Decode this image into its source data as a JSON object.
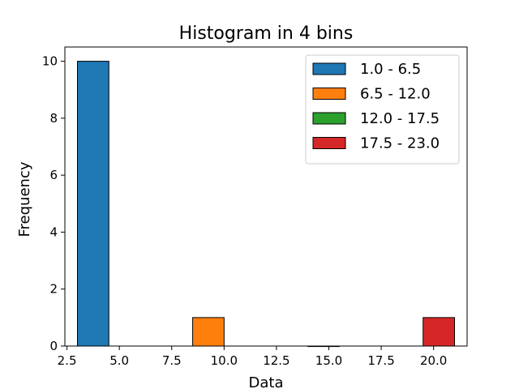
{
  "chart_data": {
    "type": "bar",
    "title": "Histogram in 4 bins",
    "xlabel": "Data",
    "ylabel": "Frequency",
    "xlim": [
      2.4,
      21.6
    ],
    "ylim": [
      0,
      10.5
    ],
    "x_ticks": [
      2.5,
      5.0,
      7.5,
      10.0,
      12.5,
      15.0,
      17.5,
      20.0
    ],
    "x_tick_labels": [
      "2.5",
      "5.0",
      "7.5",
      "10.0",
      "12.5",
      "15.0",
      "17.5",
      "20.0"
    ],
    "y_ticks": [
      0,
      2,
      4,
      6,
      8,
      10
    ],
    "y_tick_labels": [
      "0",
      "2",
      "4",
      "6",
      "8",
      "10"
    ],
    "legend_position": "top-right",
    "grid": false,
    "bar_width": 1.5,
    "series": [
      {
        "name": "1.0 - 6.5",
        "x": 3.75,
        "value": 10,
        "color": "#1f77b4"
      },
      {
        "name": "6.5 - 12.0",
        "x": 9.25,
        "value": 1,
        "color": "#ff7f0e"
      },
      {
        "name": "12.0 - 17.5",
        "x": 14.75,
        "value": 0,
        "color": "#2ca02c"
      },
      {
        "name": "17.5 - 23.0",
        "x": 20.25,
        "value": 1,
        "color": "#d62728"
      }
    ]
  }
}
